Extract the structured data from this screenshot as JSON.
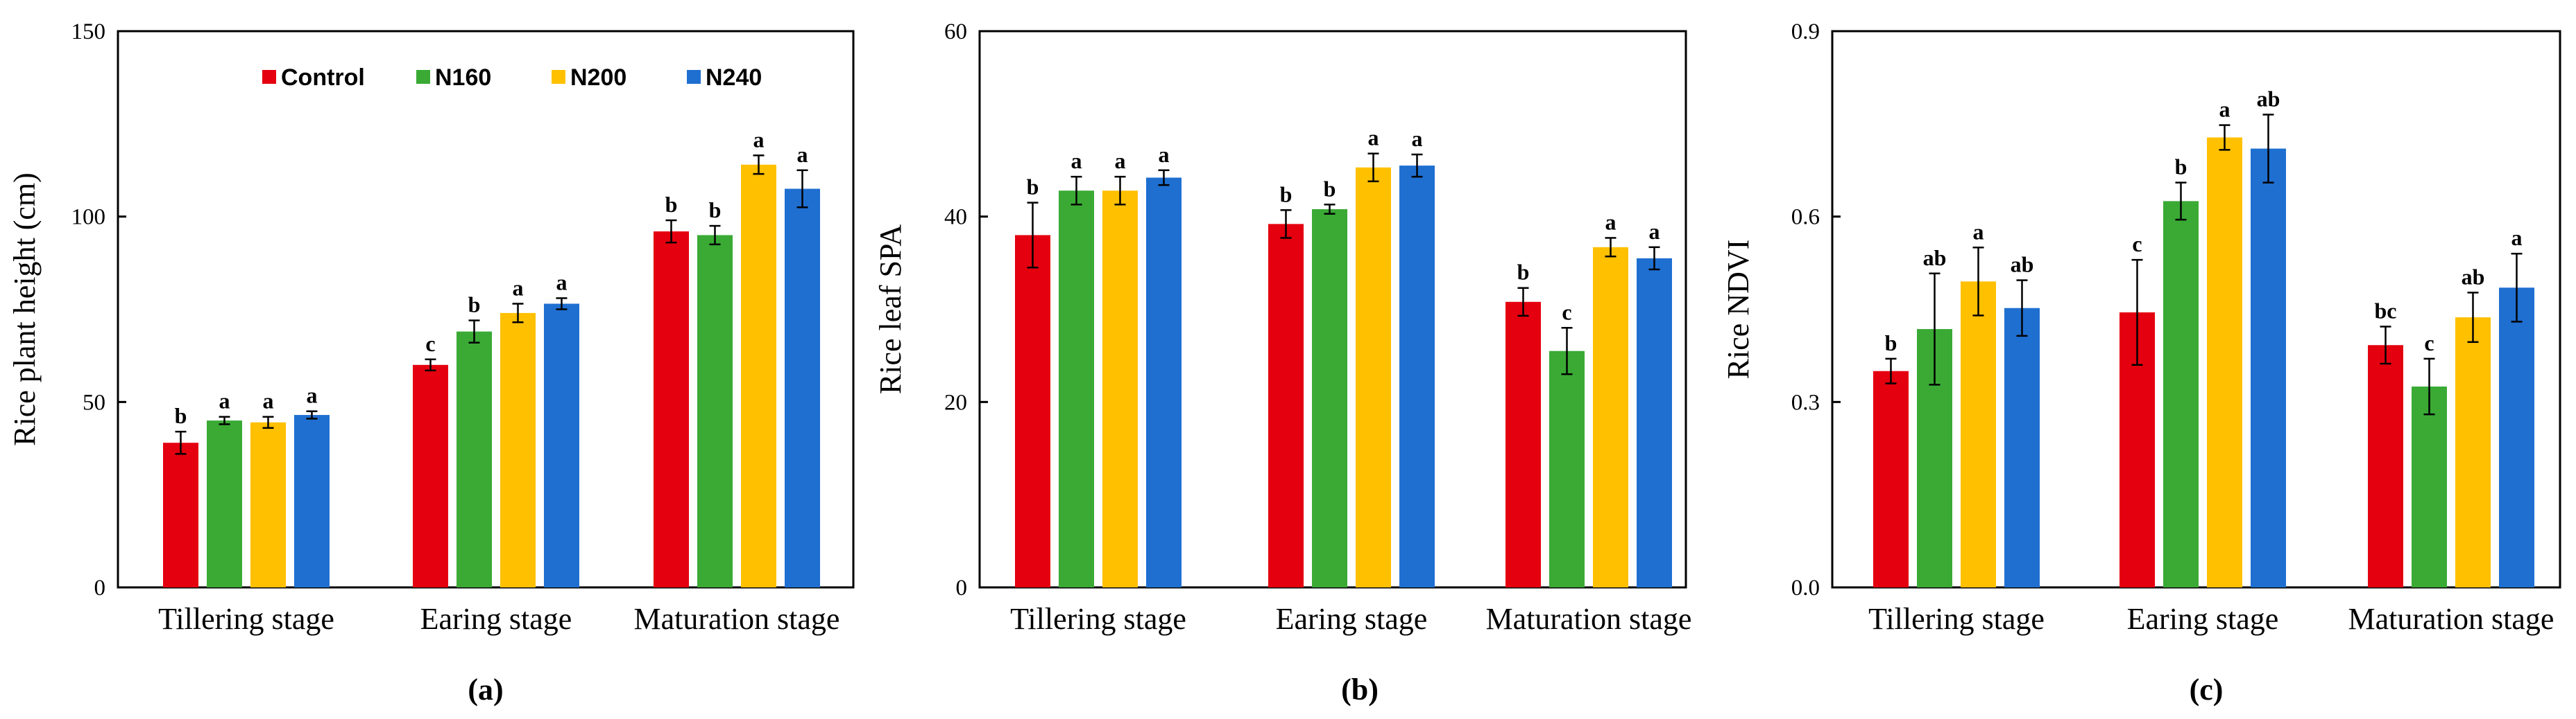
{
  "figure": {
    "panel_labels": [
      "(a)",
      "(b)",
      "(c)"
    ]
  },
  "legend": {
    "entries": [
      "Control",
      "N160",
      "N200",
      "N240"
    ],
    "colors": [
      "#e4000f",
      "#3aaa35",
      "#ffc000",
      "#1f6fd1"
    ]
  },
  "chart_data": [
    {
      "type": "bar",
      "title": "",
      "panel_label": "(a)",
      "ylabel": "Rice plant height (cm)",
      "xlabel": "",
      "ylim": [
        0,
        150
      ],
      "yticks": [
        "0",
        "50",
        "100",
        "150"
      ],
      "categories": [
        "Tillering stage",
        "Earing stage",
        "Maturation stage"
      ],
      "series": [
        {
          "name": "Control",
          "values": [
            39,
            60,
            96
          ],
          "errors": [
            3,
            1.5,
            3
          ],
          "letters": [
            "b",
            "c",
            "b"
          ]
        },
        {
          "name": "N160",
          "values": [
            45,
            69,
            95
          ],
          "errors": [
            1,
            3,
            2.5
          ],
          "letters": [
            "a",
            "b",
            "b"
          ]
        },
        {
          "name": "N200",
          "values": [
            44.5,
            74,
            114
          ],
          "errors": [
            1.5,
            2.5,
            2.5
          ],
          "letters": [
            "a",
            "a",
            "a"
          ]
        },
        {
          "name": "N240",
          "values": [
            46.5,
            76.5,
            107.5
          ],
          "errors": [
            1,
            1.5,
            5
          ],
          "letters": [
            "a",
            "a",
            "a"
          ]
        }
      ],
      "legend_position": "top-left"
    },
    {
      "type": "bar",
      "title": "",
      "panel_label": "(b)",
      "ylabel": "Rice leaf SPA",
      "xlabel": "",
      "ylim": [
        0,
        60
      ],
      "yticks": [
        "0",
        "20",
        "40",
        "60"
      ],
      "categories": [
        "Tillering stage",
        "Earing stage",
        "Maturation stage"
      ],
      "series": [
        {
          "name": "Control",
          "values": [
            38,
            39.2,
            30.8
          ],
          "errors": [
            3.5,
            1.5,
            1.5
          ],
          "letters": [
            "b",
            "b",
            "b"
          ]
        },
        {
          "name": "N160",
          "values": [
            42.8,
            40.8,
            25.5
          ],
          "errors": [
            1.5,
            0.5,
            2.5
          ],
          "letters": [
            "a",
            "b",
            "c"
          ]
        },
        {
          "name": "N200",
          "values": [
            42.8,
            45.3,
            36.7
          ],
          "errors": [
            1.5,
            1.5,
            1
          ],
          "letters": [
            "a",
            "a",
            "a"
          ]
        },
        {
          "name": "N240",
          "values": [
            44.2,
            45.5,
            35.5
          ],
          "errors": [
            0.8,
            1.2,
            1.2
          ],
          "letters": [
            "a",
            "a",
            "a"
          ]
        }
      ]
    },
    {
      "type": "bar",
      "title": "",
      "panel_label": "(c)",
      "ylabel": "Rice NDVI",
      "xlabel": "",
      "ylim": [
        0,
        0.9
      ],
      "yticks": [
        "0.0",
        "0.3",
        "0.6",
        "0.9"
      ],
      "categories": [
        "Tillering stage",
        "Earing stage",
        "Maturation stage"
      ],
      "series": [
        {
          "name": "Control",
          "values": [
            0.35,
            0.445,
            0.392
          ],
          "errors": [
            0.02,
            0.085,
            0.03
          ],
          "letters": [
            "b",
            "c",
            "bc"
          ]
        },
        {
          "name": "N160",
          "values": [
            0.418,
            0.625,
            0.325
          ],
          "errors": [
            0.09,
            0.03,
            0.045
          ],
          "letters": [
            "ab",
            "b",
            "c"
          ]
        },
        {
          "name": "N200",
          "values": [
            0.495,
            0.728,
            0.437
          ],
          "errors": [
            0.055,
            0.02,
            0.04
          ],
          "letters": [
            "a",
            "a",
            "ab"
          ]
        },
        {
          "name": "N240",
          "values": [
            0.452,
            0.71,
            0.485
          ],
          "errors": [
            0.045,
            0.055,
            0.055
          ],
          "letters": [
            "ab",
            "ab",
            "a"
          ]
        }
      ]
    }
  ]
}
